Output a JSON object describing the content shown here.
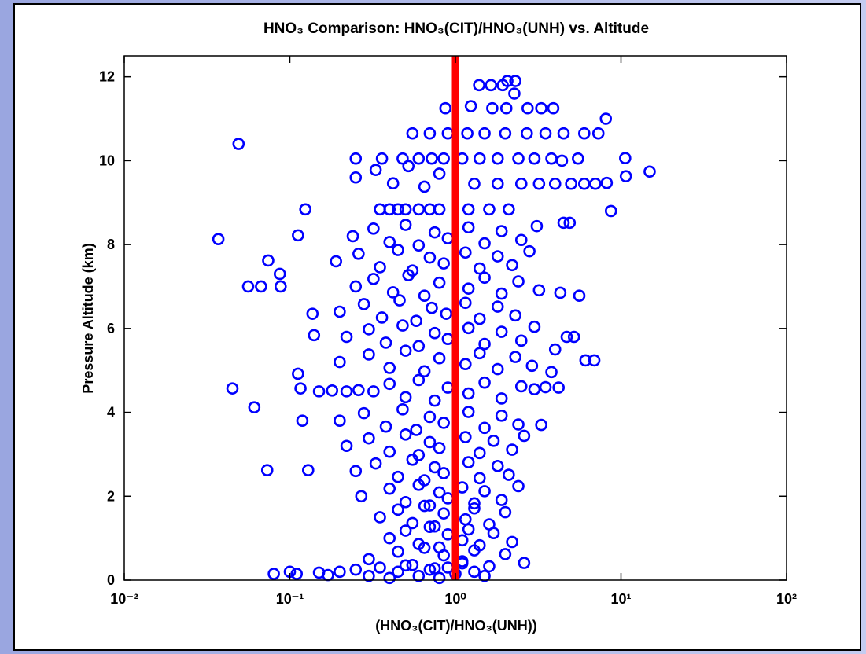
{
  "chart_data": {
    "type": "scatter",
    "title": "HNO₃ Comparison: HNO₃(CIT)/HNO₃(UNH) vs. Altitude",
    "x_label": "(HNO₃(CIT)/HNO₃(UNH))",
    "y_label": "Pressure Altitude (km)",
    "x_scale": "log",
    "xlim": [
      0.01,
      100
    ],
    "xticks": [
      {
        "value": 0.01,
        "label": "10⁻²"
      },
      {
        "value": 0.1,
        "label": "10⁻¹"
      },
      {
        "value": 1,
        "label": "10⁰"
      },
      {
        "value": 10,
        "label": "10¹"
      },
      {
        "value": 100,
        "label": "10²"
      }
    ],
    "ylim": [
      0,
      12.5
    ],
    "yticks": [
      0,
      2,
      4,
      6,
      8,
      10,
      12
    ],
    "grid": false,
    "reference_line": {
      "x": 1,
      "color": "#ff0000"
    },
    "series": [
      {
        "color": "#0000ff",
        "marker": "open-circle",
        "x": [
          0.08,
          0.1,
          0.11,
          0.15,
          0.17,
          0.2,
          0.25,
          0.3,
          0.35,
          0.4,
          0.45,
          0.5,
          0.6,
          0.7,
          0.8,
          0.9,
          1.0,
          1.1,
          1.3,
          1.5,
          0.3,
          0.45,
          0.55,
          0.65,
          0.75,
          0.85,
          1.1,
          1.3,
          1.6,
          2.0,
          2.6,
          0.4,
          0.5,
          0.6,
          0.7,
          0.8,
          0.9,
          1.1,
          1.2,
          1.4,
          1.7,
          2.2,
          0.35,
          0.45,
          0.55,
          0.65,
          0.75,
          0.85,
          1.15,
          1.3,
          1.6,
          2.0,
          0.27,
          0.4,
          0.5,
          0.6,
          0.7,
          0.8,
          0.9,
          1.1,
          1.3,
          1.5,
          1.9,
          2.4,
          0.25,
          0.33,
          0.45,
          0.55,
          0.65,
          0.75,
          0.85,
          1.2,
          1.4,
          1.8,
          2.1,
          0.22,
          0.3,
          0.4,
          0.5,
          0.6,
          0.7,
          0.8,
          1.15,
          1.4,
          1.7,
          2.2,
          2.6,
          0.2,
          0.28,
          0.38,
          0.48,
          0.58,
          0.7,
          0.85,
          1.2,
          1.5,
          1.9,
          2.4,
          0.15,
          0.18,
          0.22,
          0.26,
          0.32,
          0.4,
          0.5,
          0.6,
          0.75,
          0.9,
          1.2,
          1.5,
          1.9,
          2.5,
          3.0,
          3.5,
          0.2,
          0.3,
          0.4,
          0.5,
          0.65,
          0.8,
          1.15,
          1.4,
          1.8,
          2.3,
          2.9,
          0.22,
          0.3,
          0.38,
          0.48,
          0.6,
          0.75,
          0.9,
          1.2,
          1.5,
          1.9,
          2.5,
          3.0,
          0.2,
          0.28,
          0.36,
          0.46,
          0.58,
          0.72,
          0.88,
          1.15,
          1.4,
          1.8,
          2.3,
          0.25,
          0.32,
          0.42,
          0.52,
          0.65,
          0.8,
          1.2,
          1.5,
          1.9,
          2.4,
          3.2,
          0.19,
          0.26,
          0.35,
          0.45,
          0.55,
          0.7,
          0.85,
          1.15,
          1.4,
          1.8,
          2.2,
          2.8,
          0.24,
          0.32,
          0.4,
          0.5,
          0.6,
          0.75,
          0.9,
          1.2,
          1.5,
          1.9,
          2.5,
          3.1,
          0.35,
          0.4,
          0.45,
          0.5,
          0.6,
          0.7,
          0.8,
          1.2,
          1.6,
          2.1,
          0.25,
          0.33,
          0.42,
          0.52,
          0.65,
          0.8,
          1.3,
          1.8,
          2.5,
          3.2,
          4.0,
          5.0,
          6.0,
          7.0,
          0.25,
          0.36,
          0.48,
          0.6,
          0.72,
          0.85,
          1.1,
          1.4,
          1.8,
          2.4,
          3.0,
          3.8,
          5.5,
          0.55,
          0.7,
          0.9,
          1.18,
          1.5,
          2.0,
          2.7,
          3.5,
          4.5,
          6.0,
          7.3,
          1.39,
          1.64,
          1.93,
          2.06,
          2.3,
          1.24,
          1.67,
          2.03,
          2.73,
          3.3,
          3.9,
          0.87,
          2.27,
          0.049,
          0.037,
          0.061,
          0.045,
          0.073,
          0.129,
          0.074,
          0.056,
          0.067,
          0.087,
          0.088,
          0.124,
          0.112,
          0.112,
          0.116,
          0.119,
          0.14,
          0.137,
          14.9,
          10.6,
          10.7,
          8.2,
          8.7,
          8.1,
          6.9,
          5.6,
          6.1,
          4.4,
          4.5,
          4.9,
          4.3,
          4.7,
          5.2,
          4.2,
          3.8,
          3.3,
          4.0
        ],
        "values": [
          0.15,
          0.2,
          0.15,
          0.18,
          0.12,
          0.2,
          0.25,
          0.1,
          0.3,
          0.05,
          0.2,
          0.35,
          0.1,
          0.25,
          0.05,
          0.3,
          0.15,
          0.4,
          0.2,
          0.1,
          0.5,
          0.68,
          0.36,
          0.77,
          0.28,
          0.59,
          0.45,
          0.71,
          0.33,
          0.62,
          0.41,
          1.0,
          1.18,
          0.86,
          1.27,
          0.78,
          1.09,
          0.95,
          1.21,
          0.83,
          1.12,
          0.91,
          1.5,
          1.68,
          1.36,
          1.77,
          1.28,
          1.59,
          1.45,
          1.71,
          1.33,
          1.62,
          2.0,
          2.18,
          1.86,
          2.27,
          1.78,
          2.09,
          1.95,
          2.21,
          1.83,
          2.12,
          1.91,
          2.24,
          2.6,
          2.78,
          2.46,
          2.87,
          2.38,
          2.69,
          2.55,
          2.81,
          2.43,
          2.72,
          2.51,
          3.2,
          3.38,
          3.06,
          3.47,
          2.98,
          3.29,
          3.15,
          3.41,
          3.03,
          3.32,
          3.11,
          3.44,
          3.8,
          3.98,
          3.66,
          4.07,
          3.58,
          3.89,
          3.75,
          4.01,
          3.63,
          3.92,
          3.71,
          4.5,
          4.52,
          4.5,
          4.53,
          4.5,
          4.68,
          4.36,
          4.77,
          4.28,
          4.59,
          4.45,
          4.71,
          4.33,
          4.62,
          4.55,
          4.6,
          5.2,
          5.38,
          5.06,
          5.47,
          4.98,
          5.29,
          5.15,
          5.41,
          5.03,
          5.32,
          5.11,
          5.8,
          5.98,
          5.66,
          6.07,
          5.58,
          5.89,
          5.75,
          6.01,
          5.63,
          5.92,
          5.71,
          6.04,
          6.4,
          6.58,
          6.26,
          6.67,
          6.18,
          6.49,
          6.35,
          6.61,
          6.23,
          6.52,
          6.31,
          7.0,
          7.18,
          6.86,
          7.27,
          6.78,
          7.09,
          6.95,
          7.21,
          6.83,
          7.12,
          6.91,
          7.6,
          7.78,
          7.46,
          7.87,
          7.38,
          7.69,
          7.55,
          7.81,
          7.43,
          7.72,
          7.51,
          7.84,
          8.2,
          8.38,
          8.06,
          8.47,
          7.98,
          8.29,
          8.15,
          8.41,
          8.03,
          8.32,
          8.11,
          8.44,
          8.84,
          8.84,
          8.84,
          8.84,
          8.84,
          8.84,
          8.84,
          8.84,
          8.84,
          8.84,
          9.6,
          9.78,
          9.46,
          9.87,
          9.38,
          9.69,
          9.45,
          9.45,
          9.45,
          9.45,
          9.45,
          9.45,
          9.45,
          9.45,
          10.05,
          10.05,
          10.05,
          10.05,
          10.05,
          10.05,
          10.05,
          10.05,
          10.05,
          10.05,
          10.05,
          10.05,
          10.05,
          10.65,
          10.65,
          10.65,
          10.65,
          10.65,
          10.65,
          10.65,
          10.65,
          10.65,
          10.65,
          10.65,
          11.8,
          11.8,
          11.8,
          11.9,
          11.9,
          11.3,
          11.25,
          11.25,
          11.25,
          11.25,
          11.25,
          11.25,
          11.6,
          10.4,
          8.13,
          4.12,
          4.57,
          2.62,
          2.62,
          7.62,
          7.0,
          7.0,
          7.3,
          7.0,
          8.84,
          8.22,
          4.92,
          4.57,
          3.8,
          5.84,
          6.35,
          9.74,
          10.06,
          9.63,
          9.47,
          8.8,
          11.0,
          5.24,
          6.78,
          5.24,
          10.0,
          8.52,
          8.52,
          6.85,
          5.8,
          5.8,
          4.59,
          4.96,
          3.7,
          5.5
        ]
      }
    ]
  }
}
